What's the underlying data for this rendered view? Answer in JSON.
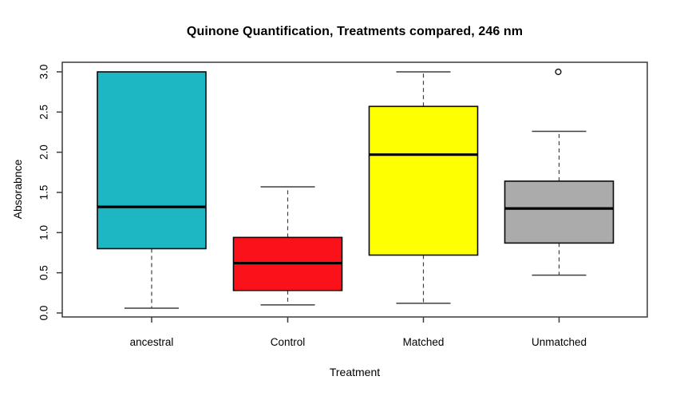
{
  "figure": {
    "kind": "R base-graphics boxplot screenshot",
    "background_color": "#ffffff"
  },
  "chart_data": {
    "type": "boxplot",
    "title": "Quinone Quantification, Treatments compared, 246 nm",
    "xlabel": "Treatment",
    "ylabel": "Absorabnce",
    "ylim": [
      0.0,
      3.0
    ],
    "yticks": [
      0.0,
      0.5,
      1.0,
      1.5,
      2.0,
      2.5,
      3.0
    ],
    "ytick_labels": [
      "0.0",
      "0.5",
      "1.0",
      "1.5",
      "2.0",
      "2.5",
      "3.0"
    ],
    "grid": false,
    "legend": "none",
    "categories": [
      "ancestral",
      "Control",
      "Matched",
      "Unmatched"
    ],
    "groups": [
      {
        "label": "ancestral",
        "color": "#1cb7c2",
        "min": 0.06,
        "q1": 0.8,
        "median": 1.32,
        "q3": 3.0,
        "max": 3.0,
        "outliers": []
      },
      {
        "label": "Control",
        "color": "#fa1119",
        "min": 0.1,
        "q1": 0.28,
        "median": 0.62,
        "q3": 0.94,
        "max": 1.57,
        "outliers": []
      },
      {
        "label": "Matched",
        "color": "#feff00",
        "min": 0.12,
        "q1": 0.72,
        "median": 1.97,
        "q3": 2.57,
        "max": 3.0,
        "outliers": []
      },
      {
        "label": "Unmatched",
        "color": "#ababab",
        "min": 0.47,
        "q1": 0.87,
        "median": 1.3,
        "q3": 1.64,
        "max": 2.26,
        "outliers": [
          3.0
        ]
      }
    ],
    "style_colors": {
      "frame_stroke": "#3a3a3a",
      "tick_stroke": "#3a3a3a",
      "whisker_stroke": "#3f3f3f",
      "box_border": "#0b0b0b",
      "median_stroke": "#000000",
      "outlier_stroke": "#111111",
      "text_color": "#000000"
    }
  }
}
